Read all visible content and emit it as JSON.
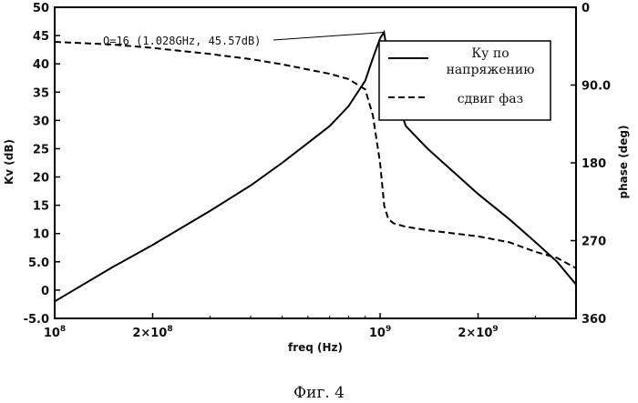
{
  "chart_data": {
    "type": "line",
    "xlabel": "freq (Hz)",
    "ylabel_left": "Kv (dB)",
    "ylabel_right": "phase (deg)",
    "x_scale": "log",
    "xlim": [
      100000000,
      4000000000
    ],
    "ylim_left": [
      -5,
      50
    ],
    "ylim_right": [
      0,
      360
    ],
    "right_axis_inverted": true,
    "x_ticks": [
      {
        "value": 100000000,
        "base": "10",
        "exp": "8"
      },
      {
        "value": 200000000,
        "base": "2x10",
        "exp": "8"
      },
      {
        "value": 1000000000,
        "base": "10",
        "exp": "9"
      },
      {
        "value": 2000000000,
        "base": "2x10",
        "exp": "9"
      }
    ],
    "y_left_ticks": [
      {
        "value": 50,
        "label": "50"
      },
      {
        "value": 45,
        "label": "45"
      },
      {
        "value": 40,
        "label": "40"
      },
      {
        "value": 35,
        "label": "35"
      },
      {
        "value": 30,
        "label": "30"
      },
      {
        "value": 25,
        "label": "25"
      },
      {
        "value": 20,
        "label": "20"
      },
      {
        "value": 15,
        "label": "15"
      },
      {
        "value": 10,
        "label": "10"
      },
      {
        "value": 5,
        "label": "5.0"
      },
      {
        "value": 0,
        "label": "0"
      },
      {
        "value": -5,
        "label": "-5.0"
      }
    ],
    "y_right_ticks": [
      {
        "value": 0,
        "label": "0"
      },
      {
        "value": 90,
        "label": "90.0"
      },
      {
        "value": 180,
        "label": "180"
      },
      {
        "value": 270,
        "label": "270"
      },
      {
        "value": 360,
        "label": "360"
      }
    ],
    "legend_position": "top-right",
    "series": [
      {
        "name": "Ку по напряжению",
        "axis": "left",
        "style": "solid",
        "x": [
          100000000,
          150000000,
          200000000,
          300000000,
          400000000,
          500000000,
          600000000,
          700000000,
          800000000,
          900000000,
          950000000,
          1000000000,
          1028000000,
          1060000000,
          1100000000,
          1200000000,
          1400000000,
          1600000000,
          2000000000,
          2500000000,
          3000000000,
          3500000000,
          4000000000
        ],
        "values": [
          -2,
          4,
          8,
          14,
          18.5,
          22.5,
          26,
          29,
          32.5,
          37,
          41,
          44.5,
          45.57,
          41,
          35,
          29,
          25,
          22,
          17,
          12.5,
          8.5,
          5,
          1
        ]
      },
      {
        "name": "сдвиг фаз",
        "axis": "right",
        "style": "dashed",
        "x": [
          100000000,
          150000000,
          200000000,
          300000000,
          400000000,
          500000000,
          600000000,
          700000000,
          800000000,
          900000000,
          950000000,
          1000000000,
          1030000000,
          1060000000,
          1100000000,
          1200000000,
          1400000000,
          2000000000,
          2500000000,
          3000000000,
          3500000000,
          4000000000
        ],
        "values": [
          40,
          43,
          47,
          54,
          60,
          66,
          72,
          77,
          83,
          95,
          125,
          180,
          230,
          245,
          250,
          254,
          258,
          265,
          272,
          283,
          290,
          302
        ]
      }
    ],
    "annotation": {
      "text": "Q=16 (1.028GHz, 45.57dB)",
      "x": 1028000000,
      "y": 45.57
    }
  },
  "caption": "Фиг. 4"
}
